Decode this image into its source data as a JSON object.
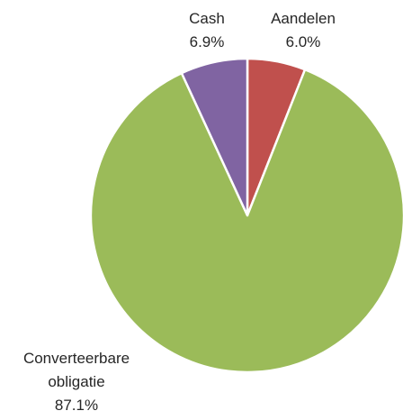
{
  "chart_data": {
    "type": "pie",
    "categories": [
      "Aandelen",
      "Converteerbare obligatie",
      "Cash"
    ],
    "values": [
      6.0,
      87.1,
      6.9
    ],
    "value_labels": [
      "6.0%",
      "87.1%",
      "6.9%"
    ],
    "colors": [
      "#c0504d",
      "#9bbb59",
      "#8064a2"
    ]
  }
}
